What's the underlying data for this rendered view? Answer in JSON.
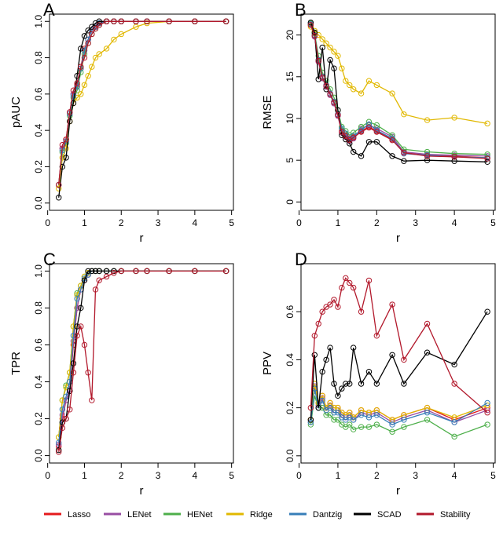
{
  "chart_data": [
    {
      "type": "line",
      "label": "A",
      "ylabel": "pAUC",
      "xlabel": "r",
      "x": [
        0.3,
        0.4,
        0.5,
        0.6,
        0.7,
        0.8,
        0.9,
        1.0,
        1.1,
        1.2,
        1.3,
        1.4,
        1.6,
        1.8,
        2.0,
        2.4,
        2.7,
        3.3,
        4.0,
        4.85
      ],
      "xlim": [
        0.05,
        5.05
      ],
      "ylim": [
        -0.04,
        1.04
      ],
      "xticks": [
        0,
        1,
        2,
        3,
        4,
        5
      ],
      "yticks": [
        {
          "value": 0,
          "label": "0.0"
        },
        {
          "value": 0.2,
          "label": "0.2"
        },
        {
          "value": 0.4,
          "label": "0.4"
        },
        {
          "value": 0.6,
          "label": "0.6"
        },
        {
          "value": 0.8,
          "label": "0.8"
        },
        {
          "value": 1,
          "label": "1.0"
        }
      ],
      "series": [
        {
          "name": "Lasso",
          "color": "#e41a1c",
          "values": [
            0.1,
            0.3,
            0.35,
            0.5,
            0.6,
            0.65,
            0.75,
            0.85,
            0.9,
            0.95,
            0.97,
            0.99,
            1,
            1,
            1,
            1,
            1,
            1,
            1,
            1
          ]
        },
        {
          "name": "LENet",
          "color": "#984ea3",
          "values": [
            0.1,
            0.3,
            0.34,
            0.5,
            0.6,
            0.64,
            0.74,
            0.84,
            0.9,
            0.95,
            0.97,
            0.99,
            1,
            1,
            1,
            1,
            1,
            1,
            1,
            1
          ]
        },
        {
          "name": "HENet",
          "color": "#4daf4a",
          "values": [
            0.1,
            0.28,
            0.33,
            0.48,
            0.58,
            0.62,
            0.72,
            0.82,
            0.88,
            0.93,
            0.96,
            0.98,
            1,
            1,
            1,
            1,
            1,
            1,
            1,
            1
          ]
        },
        {
          "name": "Ridge",
          "color": "#e1b800",
          "values": [
            0.08,
            0.25,
            0.3,
            0.45,
            0.55,
            0.58,
            0.6,
            0.65,
            0.7,
            0.75,
            0.8,
            0.82,
            0.85,
            0.9,
            0.93,
            0.97,
            0.99,
            1,
            1,
            1
          ]
        },
        {
          "name": "Dantzig",
          "color": "#377eb8",
          "values": [
            0.1,
            0.29,
            0.34,
            0.49,
            0.59,
            0.64,
            0.74,
            0.84,
            0.9,
            0.95,
            0.97,
            0.99,
            1,
            1,
            1,
            1,
            1,
            1,
            1,
            1
          ]
        },
        {
          "name": "SCAD",
          "color": "#000000",
          "values": [
            0.03,
            0.2,
            0.25,
            0.45,
            0.55,
            0.7,
            0.85,
            0.92,
            0.95,
            0.97,
            0.99,
            1,
            1,
            1,
            1,
            1,
            1,
            1,
            1,
            1
          ]
        },
        {
          "name": "Stability",
          "color": "#b2182b",
          "values": [
            0.1,
            0.32,
            0.35,
            0.5,
            0.62,
            0.66,
            0.75,
            0.8,
            0.88,
            0.93,
            0.96,
            0.98,
            1,
            1,
            1,
            1,
            1,
            1,
            1,
            1
          ]
        }
      ]
    },
    {
      "type": "line",
      "label": "B",
      "ylabel": "RMSE",
      "xlabel": "r",
      "x": [
        0.3,
        0.4,
        0.5,
        0.6,
        0.7,
        0.8,
        0.9,
        1.0,
        1.1,
        1.2,
        1.3,
        1.4,
        1.6,
        1.8,
        2.0,
        2.4,
        2.7,
        3.3,
        4.0,
        4.85
      ],
      "xlim": [
        0.05,
        5.05
      ],
      "ylim": [
        -1,
        22.5
      ],
      "xticks": [
        0,
        1,
        2,
        3,
        4,
        5
      ],
      "yticks": [
        0,
        5,
        10,
        15,
        20
      ],
      "series": [
        {
          "name": "Lasso",
          "color": "#e41a1c",
          "values": [
            21.3,
            20,
            17,
            15,
            14,
            13,
            12,
            10.5,
            8.5,
            8,
            7.5,
            7.8,
            8.5,
            9,
            8.5,
            7.5,
            6,
            5.6,
            5.5,
            5.3
          ]
        },
        {
          "name": "LENet",
          "color": "#984ea3",
          "values": [
            21.2,
            19.8,
            16.8,
            14.8,
            13.8,
            12.8,
            11.8,
            10.3,
            8.3,
            7.8,
            7.3,
            7.6,
            8.8,
            9.2,
            8.8,
            7.8,
            6,
            5.7,
            5.6,
            5.5
          ]
        },
        {
          "name": "HENet",
          "color": "#4daf4a",
          "values": [
            21.4,
            20.2,
            17.5,
            15.5,
            14.5,
            13.5,
            12.5,
            11,
            9,
            8.5,
            8,
            8.3,
            9,
            9.6,
            9.2,
            8,
            6.3,
            6,
            5.8,
            5.7
          ]
        },
        {
          "name": "Ridge",
          "color": "#e1b800",
          "values": [
            21,
            20.5,
            20,
            19.5,
            19,
            18.5,
            18,
            17.5,
            16,
            14.5,
            14,
            13.5,
            13,
            14.5,
            14,
            13,
            10.5,
            9.8,
            10.1,
            9.4
          ]
        },
        {
          "name": "Dantzig",
          "color": "#377eb8",
          "values": [
            21.3,
            20,
            17,
            15,
            14,
            13,
            12,
            10.5,
            8.8,
            8.2,
            7.6,
            7.9,
            8.6,
            9.3,
            8.6,
            7.6,
            5.8,
            5.6,
            5.4,
            5.3
          ]
        },
        {
          "name": "SCAD",
          "color": "#000000",
          "values": [
            21.5,
            20.3,
            14.7,
            18.5,
            13.5,
            17,
            16,
            11,
            8,
            7.5,
            7,
            6,
            5.5,
            7.2,
            7.2,
            5.5,
            4.9,
            5,
            4.9,
            4.8
          ]
        },
        {
          "name": "Stability",
          "color": "#b2182b",
          "values": [
            21.2,
            19.9,
            16.9,
            14.9,
            13.9,
            12.9,
            11.9,
            10.4,
            8.4,
            7.9,
            7.4,
            7.7,
            8.4,
            8.9,
            8.4,
            7.4,
            5.9,
            5.5,
            5.4,
            5.2
          ]
        }
      ]
    },
    {
      "type": "line",
      "label": "C",
      "ylabel": "TPR",
      "xlabel": "r",
      "x": [
        0.3,
        0.4,
        0.5,
        0.6,
        0.7,
        0.8,
        0.9,
        1.0,
        1.1,
        1.2,
        1.3,
        1.4,
        1.6,
        1.8,
        2.0,
        2.4,
        2.7,
        3.3,
        4.0,
        4.85
      ],
      "xlim": [
        0.05,
        5.05
      ],
      "ylim": [
        -0.04,
        1.04
      ],
      "xticks": [
        0,
        1,
        2,
        3,
        4,
        5
      ],
      "yticks": [
        {
          "value": 0,
          "label": "0.0"
        },
        {
          "value": 0.2,
          "label": "0.2"
        },
        {
          "value": 0.4,
          "label": "0.4"
        },
        {
          "value": 0.6,
          "label": "0.6"
        },
        {
          "value": 0.8,
          "label": "0.8"
        },
        {
          "value": 1,
          "label": "1.0"
        }
      ],
      "series": [
        {
          "name": "Lasso",
          "color": "#e41a1c",
          "values": [
            0.05,
            0.2,
            0.3,
            0.35,
            0.6,
            0.8,
            0.9,
            0.95,
            0.98,
            1,
            1,
            1,
            1,
            1,
            1,
            1,
            1,
            1,
            1,
            1
          ]
        },
        {
          "name": "LENet",
          "color": "#984ea3",
          "values": [
            0.06,
            0.22,
            0.3,
            0.36,
            0.62,
            0.8,
            0.9,
            0.95,
            0.98,
            1,
            1,
            1,
            1,
            1,
            1,
            1,
            1,
            1,
            1,
            1
          ]
        },
        {
          "name": "HENet",
          "color": "#4daf4a",
          "values": [
            0.1,
            0.3,
            0.38,
            0.45,
            0.7,
            0.88,
            0.92,
            0.97,
            0.99,
            1,
            1,
            1,
            1,
            1,
            1,
            1,
            1,
            1,
            1,
            1
          ]
        },
        {
          "name": "Ridge",
          "color": "#e1b800",
          "values": [
            0.1,
            0.3,
            0.37,
            0.45,
            0.7,
            0.87,
            0.92,
            0.97,
            0.99,
            1,
            1,
            1,
            1,
            1,
            1,
            1,
            1,
            1,
            1,
            1
          ]
        },
        {
          "name": "Dantzig",
          "color": "#377eb8",
          "values": [
            0.07,
            0.25,
            0.32,
            0.4,
            0.65,
            0.85,
            0.9,
            0.96,
            0.98,
            1,
            1,
            1,
            1,
            1,
            1,
            1,
            1,
            1,
            1,
            1
          ]
        },
        {
          "name": "SCAD",
          "color": "#000000",
          "values": [
            0.03,
            0.18,
            0.2,
            0.35,
            0.5,
            0.7,
            0.8,
            0.95,
            1,
            1,
            1,
            1,
            1,
            1,
            1,
            1,
            1,
            1,
            1,
            1
          ]
        },
        {
          "name": "Stability",
          "color": "#b2182b",
          "values": [
            0.02,
            0.15,
            0.2,
            0.25,
            0.45,
            0.65,
            0.7,
            0.6,
            0.45,
            0.3,
            0.9,
            0.95,
            0.97,
            0.99,
            1,
            1,
            1,
            1,
            1,
            1
          ]
        }
      ]
    },
    {
      "type": "line",
      "label": "D",
      "ylabel": "PPV",
      "xlabel": "r",
      "x": [
        0.3,
        0.4,
        0.5,
        0.6,
        0.7,
        0.8,
        0.9,
        1.0,
        1.1,
        1.2,
        1.3,
        1.4,
        1.6,
        1.8,
        2.0,
        2.4,
        2.7,
        3.3,
        4.0,
        4.85
      ],
      "xlim": [
        0.05,
        5.05
      ],
      "ylim": [
        -0.03,
        0.8
      ],
      "xticks": [
        0,
        1,
        2,
        3,
        4,
        5
      ],
      "yticks": [
        {
          "value": 0,
          "label": "0.0"
        },
        {
          "value": 0.2,
          "label": "0.2"
        },
        {
          "value": 0.4,
          "label": "0.4"
        },
        {
          "value": 0.6,
          "label": "0.6"
        }
      ],
      "series": [
        {
          "name": "Lasso",
          "color": "#e41a1c",
          "values": [
            0.15,
            0.3,
            0.22,
            0.25,
            0.2,
            0.22,
            0.2,
            0.2,
            0.18,
            0.17,
            0.18,
            0.16,
            0.19,
            0.18,
            0.19,
            0.15,
            0.17,
            0.2,
            0.15,
            0.2
          ]
        },
        {
          "name": "LENet",
          "color": "#984ea3",
          "values": [
            0.14,
            0.29,
            0.21,
            0.24,
            0.19,
            0.21,
            0.19,
            0.19,
            0.17,
            0.16,
            0.17,
            0.15,
            0.18,
            0.17,
            0.18,
            0.14,
            0.16,
            0.19,
            0.14,
            0.19
          ]
        },
        {
          "name": "HENet",
          "color": "#4daf4a",
          "values": [
            0.13,
            0.25,
            0.2,
            0.2,
            0.17,
            0.17,
            0.15,
            0.15,
            0.13,
            0.12,
            0.13,
            0.11,
            0.12,
            0.12,
            0.13,
            0.1,
            0.12,
            0.15,
            0.08,
            0.13
          ]
        },
        {
          "name": "Ridge",
          "color": "#e1b800",
          "values": [
            0.15,
            0.3,
            0.22,
            0.25,
            0.2,
            0.22,
            0.2,
            0.2,
            0.18,
            0.17,
            0.18,
            0.16,
            0.19,
            0.18,
            0.19,
            0.15,
            0.17,
            0.2,
            0.16,
            0.21
          ]
        },
        {
          "name": "Dantzig",
          "color": "#377eb8",
          "values": [
            0.14,
            0.28,
            0.2,
            0.23,
            0.19,
            0.2,
            0.18,
            0.18,
            0.16,
            0.15,
            0.16,
            0.15,
            0.17,
            0.16,
            0.17,
            0.13,
            0.15,
            0.18,
            0.14,
            0.22
          ]
        },
        {
          "name": "SCAD",
          "color": "#000000",
          "values": [
            0.15,
            0.42,
            0.2,
            0.35,
            0.4,
            0.45,
            0.3,
            0.25,
            0.28,
            0.3,
            0.3,
            0.45,
            0.3,
            0.35,
            0.3,
            0.42,
            0.3,
            0.43,
            0.38,
            0.6
          ]
        },
        {
          "name": "Stability",
          "color": "#b2182b",
          "values": [
            0.2,
            0.5,
            0.55,
            0.6,
            0.62,
            0.63,
            0.65,
            0.62,
            0.7,
            0.74,
            0.72,
            0.7,
            0.6,
            0.73,
            0.5,
            0.63,
            0.4,
            0.55,
            0.3,
            0.18
          ]
        }
      ]
    }
  ]
}
